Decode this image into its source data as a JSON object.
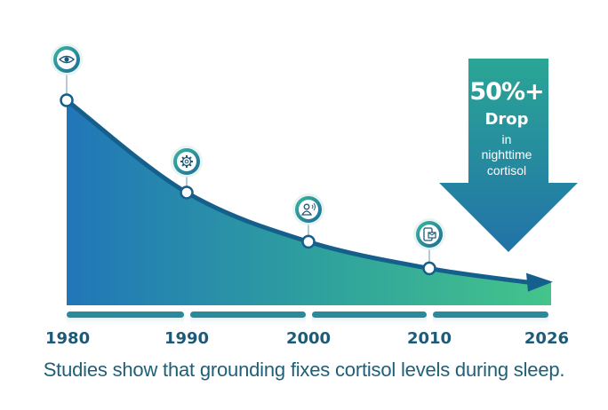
{
  "chart_data": {
    "type": "area",
    "title": "",
    "xlabel": "",
    "ylabel": "",
    "x": [
      1980,
      1990,
      2000,
      2010,
      2026
    ],
    "values": [
      100,
      55,
      31,
      18,
      11
    ],
    "ylim": [
      0,
      110
    ],
    "tick_labels": [
      "1980",
      "1990",
      "2000",
      "2010",
      "2026"
    ],
    "markers": [
      {
        "x": 1980,
        "icon": "eye-icon"
      },
      {
        "x": 1990,
        "icon": "gear-icon"
      },
      {
        "x": 2000,
        "icon": "person-sound-icon"
      },
      {
        "x": 2010,
        "icon": "phone-message-icon"
      }
    ],
    "callout": {
      "headline": "50%+",
      "label": "Drop",
      "line1": "in",
      "line2": "nighttime",
      "line3": "cortisol"
    },
    "caption": "Studies show that grounding fixes cortisol levels during sleep."
  },
  "colors": {
    "area_start": "#2176b8",
    "area_end": "#45c48b",
    "line": "#155f8c",
    "text": "#1d5a78",
    "arrow_top": "#2aa695",
    "arrow_bottom": "#2272a8"
  }
}
